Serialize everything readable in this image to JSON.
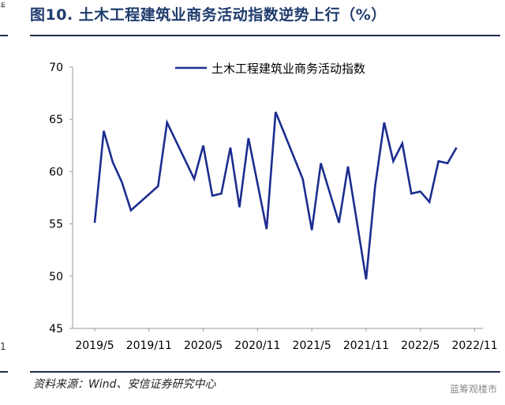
{
  "header": {
    "title": "图10. 土木工程建筑业商务活动指数逆势上行（%）"
  },
  "footer": {
    "source": "资料来源：Wind、安信证券研究中心",
    "watermark": "蓝筹观楼市"
  },
  "fragments": {
    "bottom_left": "1"
  },
  "colors": {
    "series": "#1c2d8f",
    "axis": "#999999",
    "rule": "#1f2d4a",
    "title": "#1f3c6e"
  },
  "chart_data": {
    "type": "line",
    "title": "",
    "xlabel": "",
    "ylabel": "",
    "ylim": [
      45,
      70
    ],
    "yticks": [
      45,
      50,
      55,
      60,
      65,
      70
    ],
    "x_tick_labels": [
      "2019/5",
      "2019/11",
      "2020/5",
      "2020/11",
      "2021/5",
      "2021/11",
      "2022/5",
      "2022/11"
    ],
    "grid": false,
    "legend_position": "top",
    "x": [
      "2019/5",
      "2019/6",
      "2019/7",
      "2019/8",
      "2019/9",
      "2019/10",
      "2019/11",
      "2019/12",
      "2020/1",
      "2020/2",
      "2020/3",
      "2020/4",
      "2020/5",
      "2020/6",
      "2020/7",
      "2020/8",
      "2020/9",
      "2020/10",
      "2020/11",
      "2020/12",
      "2021/1",
      "2021/2",
      "2021/3",
      "2021/4",
      "2021/5",
      "2021/6",
      "2021/7",
      "2021/8",
      "2021/9",
      "2021/10",
      "2021/11",
      "2021/12",
      "2022/1",
      "2022/2",
      "2022/3",
      "2022/4",
      "2022/5",
      "2022/6",
      "2022/7",
      "2022/8",
      "2022/9",
      "2022/10",
      "2022/11"
    ],
    "series": [
      {
        "name": "土木工程建筑业商务活动指数",
        "values": [
          55.1,
          63.9,
          60.9,
          59.0,
          56.3,
          null,
          null,
          58.6,
          64.7,
          null,
          null,
          59.3,
          62.5,
          57.7,
          57.9,
          62.3,
          56.6,
          63.2,
          null,
          54.5,
          65.7,
          null,
          null,
          59.3,
          54.4,
          60.8,
          null,
          55.1,
          60.5,
          null,
          49.7,
          58.6,
          64.7,
          61.0,
          62.7,
          57.9,
          58.1,
          57.1,
          61.0,
          60.8,
          62.3,
          null,
          null
        ]
      }
    ]
  }
}
